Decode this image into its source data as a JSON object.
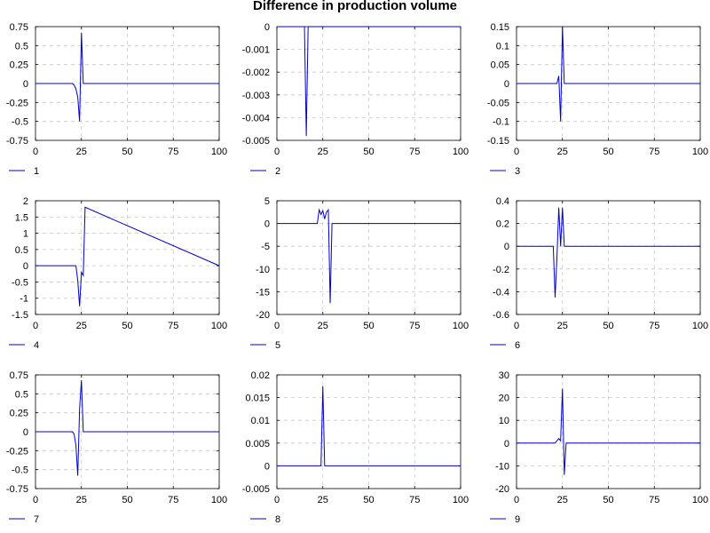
{
  "figure": {
    "title": "Difference in production volume"
  },
  "colors": {
    "series": "#0000cc",
    "grid": "#c8c8c8",
    "axis": "#000000"
  },
  "chart_data": [
    {
      "type": "line",
      "legend": "1",
      "legend_placement": "bottom-left",
      "grid": true,
      "xlim": [
        0,
        100
      ],
      "xticks": [
        0,
        25,
        50,
        75,
        100
      ],
      "ylim": [
        -0.75,
        0.75
      ],
      "yticks": [
        0.75,
        0.5,
        0.25,
        0,
        -0.25,
        -0.5,
        -0.75
      ],
      "ytick_labels": [
        "0.75",
        "0.5",
        "0.25",
        "0",
        "-0.25",
        "-0.5",
        "-0.75"
      ],
      "x": [
        0,
        20,
        21,
        22,
        23,
        24,
        25,
        26,
        100
      ],
      "y": [
        0,
        0,
        -0.02,
        -0.07,
        -0.18,
        -0.5,
        0.67,
        0,
        0
      ]
    },
    {
      "type": "line",
      "legend": "2",
      "legend_placement": "bottom-left",
      "grid": true,
      "xlim": [
        0,
        100
      ],
      "xticks": [
        0,
        25,
        50,
        75,
        100
      ],
      "ylim": [
        -0.005,
        0
      ],
      "yticks": [
        0,
        -0.001,
        -0.002,
        -0.003,
        -0.004,
        -0.005
      ],
      "ytick_labels": [
        "0",
        "-0.001",
        "-0.002",
        "-0.003",
        "-0.004",
        "-0.005"
      ],
      "x": [
        0,
        15,
        16,
        17,
        100
      ],
      "y": [
        0,
        0,
        -0.0048,
        0,
        0
      ]
    },
    {
      "type": "line",
      "legend": "3",
      "legend_placement": "bottom-left",
      "grid": true,
      "xlim": [
        0,
        100
      ],
      "xticks": [
        0,
        25,
        50,
        75,
        100
      ],
      "ylim": [
        -0.15,
        0.15
      ],
      "yticks": [
        0.15,
        0.1,
        0.05,
        0,
        -0.05,
        -0.1,
        -0.15
      ],
      "ytick_labels": [
        "0.15",
        "0.1",
        "0.05",
        "0",
        "-0.05",
        "-0.1",
        "-0.15"
      ],
      "x": [
        0,
        22,
        23,
        24,
        25,
        26,
        100
      ],
      "y": [
        0,
        0,
        0.02,
        -0.1,
        0.15,
        0,
        0
      ]
    },
    {
      "type": "line",
      "legend": "4",
      "legend_placement": "bottom-left",
      "grid": true,
      "xlim": [
        0,
        100
      ],
      "xticks": [
        0,
        25,
        50,
        75,
        100
      ],
      "ylim": [
        -1.5,
        2
      ],
      "yticks": [
        2,
        1.5,
        1,
        0.5,
        0,
        -0.5,
        -1,
        -1.5
      ],
      "ytick_labels": [
        "2",
        "1.5",
        "1",
        "0.5",
        "0",
        "-0.5",
        "-1",
        "-1.5"
      ],
      "x": [
        0,
        22,
        23,
        24,
        25,
        26,
        27,
        100
      ],
      "y": [
        0,
        0,
        -0.45,
        -1.25,
        -0.2,
        -0.3,
        1.8,
        0
      ]
    },
    {
      "type": "line",
      "legend": "5",
      "legend_placement": "bottom-left",
      "grid": true,
      "xlim": [
        0,
        100
      ],
      "xticks": [
        0,
        25,
        50,
        75,
        100
      ],
      "ylim": [
        -20,
        5
      ],
      "yticks": [
        5,
        0,
        -5,
        -10,
        -15,
        -20
      ],
      "ytick_labels": [
        "5",
        "0",
        "-5",
        "-10",
        "-15",
        "-20"
      ],
      "x": [
        0,
        22,
        23,
        24,
        25,
        26,
        27,
        28,
        29,
        30,
        100
      ],
      "y": [
        0,
        0,
        3,
        2,
        2.8,
        1,
        2.5,
        3,
        -17.5,
        0,
        0
      ]
    },
    {
      "type": "line",
      "legend": "6",
      "legend_placement": "bottom-left",
      "grid": true,
      "xlim": [
        0,
        100
      ],
      "xticks": [
        0,
        25,
        50,
        75,
        100
      ],
      "ylim": [
        -0.6,
        0.4
      ],
      "yticks": [
        0.4,
        0.2,
        0,
        -0.2,
        -0.4,
        -0.6
      ],
      "ytick_labels": [
        "0.4",
        "0.2",
        "0",
        "-0.2",
        "-0.4",
        "-0.6"
      ],
      "x": [
        0,
        20,
        21,
        22,
        23,
        24,
        25,
        26,
        100
      ],
      "y": [
        0,
        0,
        -0.45,
        -0.1,
        0.34,
        0,
        0.34,
        0,
        0
      ]
    },
    {
      "type": "line",
      "legend": "7",
      "legend_placement": "bottom-left",
      "grid": true,
      "xlim": [
        0,
        100
      ],
      "xticks": [
        0,
        25,
        50,
        75,
        100
      ],
      "ylim": [
        -0.75,
        0.75
      ],
      "yticks": [
        0.75,
        0.5,
        0.25,
        0,
        -0.25,
        -0.5,
        -0.75
      ],
      "ytick_labels": [
        "0.75",
        "0.5",
        "0.25",
        "0",
        "-0.25",
        "-0.5",
        "-0.75"
      ],
      "x": [
        0,
        20,
        21,
        22,
        23,
        24,
        25,
        26,
        100
      ],
      "y": [
        0,
        0,
        -0.03,
        -0.18,
        -0.58,
        0.3,
        0.68,
        0,
        0
      ]
    },
    {
      "type": "line",
      "legend": "8",
      "legend_placement": "bottom-left",
      "grid": true,
      "xlim": [
        0,
        100
      ],
      "xticks": [
        0,
        25,
        50,
        75,
        100
      ],
      "ylim": [
        -0.005,
        0.02
      ],
      "yticks": [
        0.02,
        0.015,
        0.01,
        0.005,
        0,
        -0.005
      ],
      "ytick_labels": [
        "0.02",
        "0.015",
        "0.01",
        "0.005",
        "0",
        "-0.005"
      ],
      "x": [
        0,
        24,
        25,
        26,
        100
      ],
      "y": [
        0,
        0,
        0.0175,
        0,
        0
      ]
    },
    {
      "type": "line",
      "legend": "9",
      "legend_placement": "bottom-left",
      "grid": true,
      "xlim": [
        0,
        100
      ],
      "xticks": [
        0,
        25,
        50,
        75,
        100
      ],
      "ylim": [
        -20,
        30
      ],
      "yticks": [
        30,
        20,
        10,
        0,
        -10,
        -20
      ],
      "ytick_labels": [
        "30",
        "20",
        "10",
        "0",
        "-10",
        "-20"
      ],
      "x": [
        0,
        21,
        22,
        23,
        24,
        25,
        26,
        27,
        100
      ],
      "y": [
        0,
        0,
        1,
        2,
        1,
        24,
        -14,
        0,
        0
      ]
    }
  ]
}
